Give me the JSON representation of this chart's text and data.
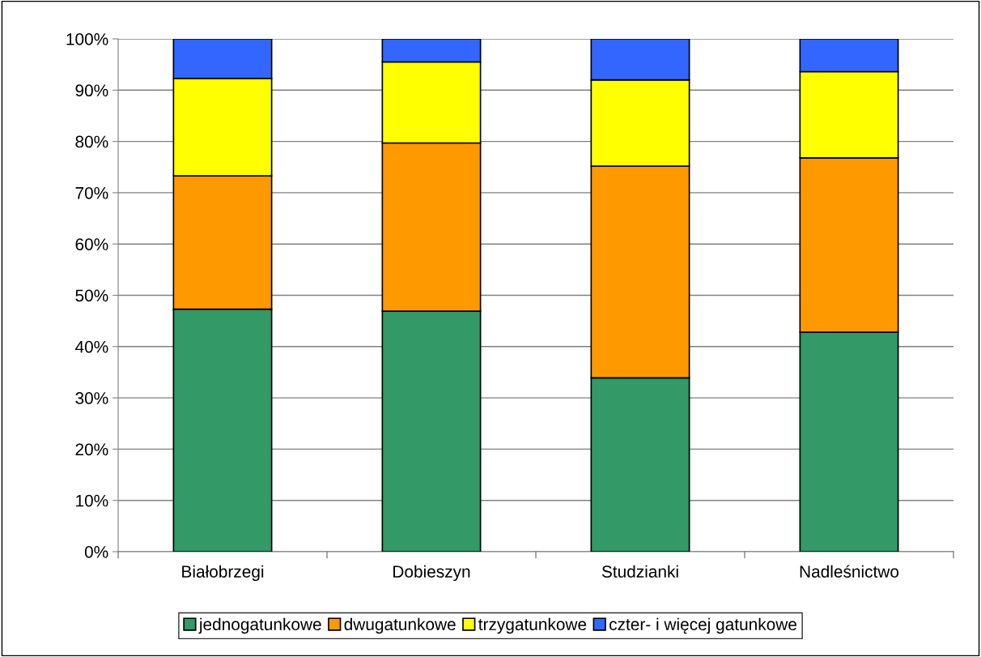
{
  "chart_data": {
    "type": "bar",
    "stacked": true,
    "categories": [
      "Białobrzegi",
      "Dobieszyn",
      "Studzianki",
      "Nadleśnictwo"
    ],
    "series": [
      {
        "name": "jednogatunkowe",
        "color": "#339966",
        "values": [
          47.3,
          46.9,
          33.9,
          42.8
        ]
      },
      {
        "name": "dwugatunkowe",
        "color": "#ff9900",
        "values": [
          26.0,
          32.8,
          41.3,
          34.0
        ]
      },
      {
        "name": "trzygatunkowe",
        "color": "#ffff00",
        "values": [
          19.0,
          15.8,
          16.8,
          16.8
        ]
      },
      {
        "name": "czter- i więcej gatunkowe",
        "color": "#3366ff",
        "values": [
          7.7,
          4.5,
          8.0,
          6.4
        ]
      }
    ],
    "ylim": [
      0,
      100
    ],
    "yticks": [
      {
        "value": 0,
        "label": "0%"
      },
      {
        "value": 10,
        "label": "10%"
      },
      {
        "value": 20,
        "label": "20%"
      },
      {
        "value": 30,
        "label": "30%"
      },
      {
        "value": 40,
        "label": "40%"
      },
      {
        "value": 50,
        "label": "50%"
      },
      {
        "value": 60,
        "label": "60%"
      },
      {
        "value": 70,
        "label": "70%"
      },
      {
        "value": 80,
        "label": "80%"
      },
      {
        "value": 90,
        "label": "90%"
      },
      {
        "value": 100,
        "label": "100%"
      }
    ],
    "grid": "y",
    "legend": "bottom"
  }
}
